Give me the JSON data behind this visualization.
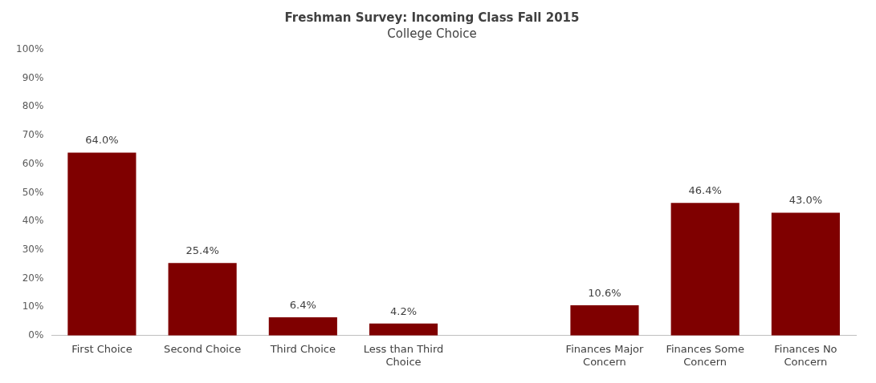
{
  "chart_data": {
    "type": "bar",
    "title": "Freshman Survey: Incoming Class Fall 2015",
    "subtitle": "College Choice",
    "categories": [
      "First Choice",
      "Second Choice",
      "Third Choice",
      "Less than Third Choice",
      null,
      "Finances Major Concern",
      "Finances Some Concern",
      "Finances No Concern"
    ],
    "values": [
      64.0,
      25.4,
      6.4,
      4.2,
      null,
      10.6,
      46.4,
      43.0
    ],
    "value_labels": [
      "64.0%",
      "25.4%",
      "6.4%",
      "4.2%",
      null,
      "10.6%",
      "46.4%",
      "43.0%"
    ],
    "color": "#7f0000",
    "ylim": [
      0,
      100
    ],
    "yticks": [
      {
        "value": 0,
        "label": "0%"
      },
      {
        "value": 10,
        "label": "10%"
      },
      {
        "value": 20,
        "label": "20%"
      },
      {
        "value": 30,
        "label": "30%"
      },
      {
        "value": 40,
        "label": "40%"
      },
      {
        "value": 50,
        "label": "50%"
      },
      {
        "value": 60,
        "label": "60%"
      },
      {
        "value": 70,
        "label": "70%"
      },
      {
        "value": 80,
        "label": "80%"
      },
      {
        "value": 90,
        "label": "90%"
      },
      {
        "value": 100,
        "label": "100%"
      }
    ],
    "grid": false,
    "legend": false
  }
}
